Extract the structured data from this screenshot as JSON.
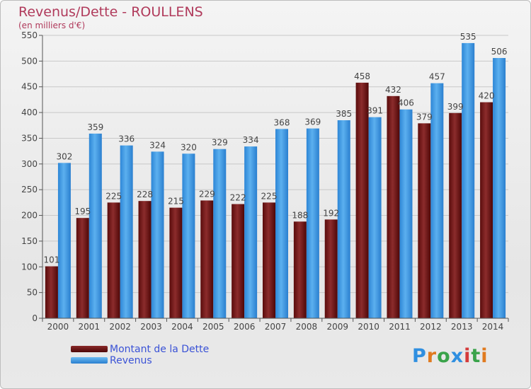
{
  "title": "Revenus/Dette - ROULLENS",
  "unit_label": "(en milliers d'€)",
  "brand": "Proxiti",
  "colors": {
    "dette": "#7a1f1f",
    "revenus": "#2f8fe0",
    "grid": "#c8c8c8",
    "title": "#b03a5b"
  },
  "legend": [
    {
      "label": "Montant de la Dette",
      "color": "#6b1414"
    },
    {
      "label": "Revenus",
      "color": "#3b9be4"
    }
  ],
  "chart_data": {
    "type": "bar",
    "categories": [
      "2000",
      "2001",
      "2002",
      "2003",
      "2004",
      "2005",
      "2006",
      "2007",
      "2008",
      "2009",
      "2010",
      "2011",
      "2012",
      "2013",
      "2014"
    ],
    "series": [
      {
        "name": "Montant de la Dette",
        "values": [
          101,
          195,
          225,
          228,
          215,
          229,
          222,
          225,
          188,
          192,
          458,
          432,
          379,
          399,
          420
        ],
        "labels": [
          "101",
          "195",
          "225",
          "228",
          "215",
          "229",
          "222",
          "225",
          "188",
          "192",
          "458",
          "432",
          "379",
          "399",
          "420"
        ]
      },
      {
        "name": "Revenus",
        "values": [
          302,
          359,
          336,
          324,
          320,
          329,
          334,
          368,
          369,
          385,
          391,
          406,
          457,
          535,
          506
        ],
        "labels": [
          "302",
          "359",
          "336",
          "324",
          "320",
          "329",
          "334",
          "368",
          "369",
          "385",
          "391",
          "406",
          "457",
          "535",
          "506"
        ]
      }
    ],
    "ylim": [
      0,
      550
    ],
    "yticks": [
      0,
      50,
      100,
      150,
      200,
      250,
      300,
      350,
      400,
      450,
      500,
      550
    ],
    "grid": true,
    "legend_position": "bottom-left"
  }
}
